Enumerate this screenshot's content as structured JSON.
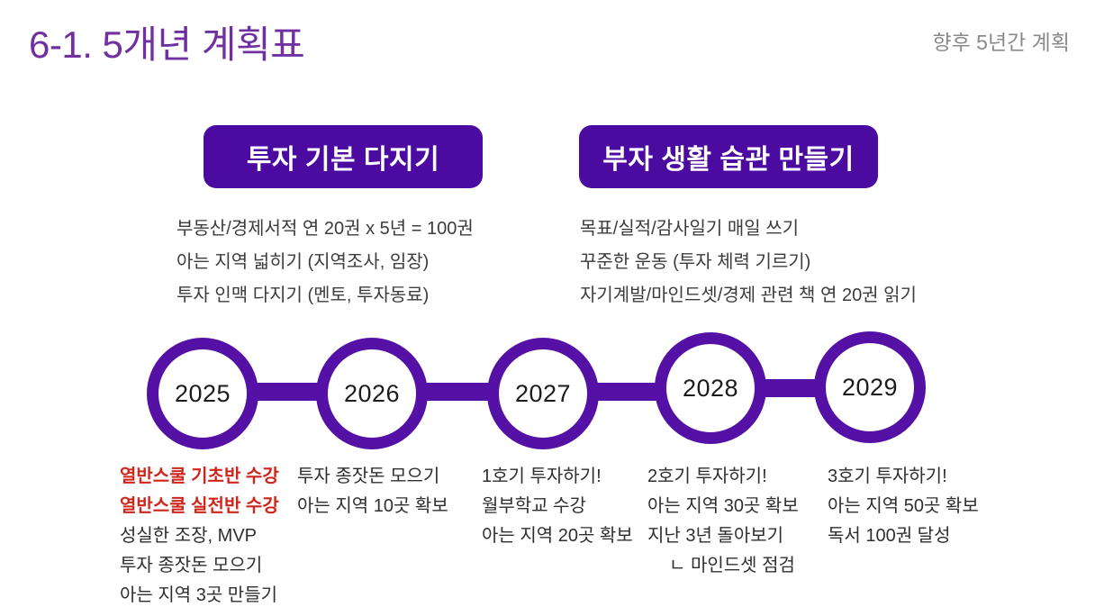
{
  "slide": {
    "title": "6-1. 5개년 계획표",
    "corner_note": "향후 5년간 계획"
  },
  "sections": [
    {
      "heading": "투자 기본 다지기",
      "lines": [
        "부동산/경제서적 연 20권 x 5년 = 100권",
        "아는 지역 넓히기 (지역조사, 임장)",
        "투자 인맥 다지기 (멘토, 투자동료)"
      ]
    },
    {
      "heading": "부자 생활 습관 만들기",
      "lines": [
        "목표/실적/감사일기 매일 쓰기",
        "꾸준한 운동 (투자 체력 기르기)",
        "자기계발/마인드셋/경제 관련 책 연 20권 읽기"
      ]
    }
  ],
  "timeline": {
    "years": [
      {
        "year": "2025",
        "items": [
          {
            "text": "열반스쿨 기초반 수강",
            "emphasis": true
          },
          {
            "text": "열반스쿨 실전반 수강",
            "emphasis": true
          },
          {
            "text": "성실한 조장, MVP",
            "emphasis": false
          },
          {
            "text": "투자 종잣돈 모으기",
            "emphasis": false
          },
          {
            "text": "아는 지역 3곳 만들기",
            "emphasis": false
          }
        ]
      },
      {
        "year": "2026",
        "items": [
          {
            "text": "투자 종잣돈 모으기",
            "emphasis": false
          },
          {
            "text": "아는 지역 10곳 확보",
            "emphasis": false
          }
        ]
      },
      {
        "year": "2027",
        "items": [
          {
            "text": "1호기 투자하기!",
            "emphasis": false
          },
          {
            "text": "월부학교 수강",
            "emphasis": false
          },
          {
            "text": "아는 지역 20곳 확보",
            "emphasis": false
          }
        ]
      },
      {
        "year": "2028",
        "items": [
          {
            "text": "2호기 투자하기!",
            "emphasis": false
          },
          {
            "text": "아는 지역 30곳 확보",
            "emphasis": false
          },
          {
            "text": "지난 3년 돌아보기",
            "emphasis": false
          },
          {
            "text": "ㄴ 마인드셋 점검",
            "emphasis": false,
            "indent": true
          }
        ]
      },
      {
        "year": "2029",
        "items": [
          {
            "text": "3호기 투자하기!",
            "emphasis": false
          },
          {
            "text": "아는 지역 50곳 확보",
            "emphasis": false
          },
          {
            "text": "독서 100권 달성",
            "emphasis": false
          }
        ]
      }
    ]
  },
  "colors": {
    "accent_purple": "#7030A0",
    "deep_purple": "#4C0BA0",
    "timeline_purple": "#5511A5",
    "emphasis_red": "#CF261C",
    "muted_gray": "#8A8A8A",
    "body_text": "#3C3C3C",
    "year_text": "#1C1C1C"
  }
}
